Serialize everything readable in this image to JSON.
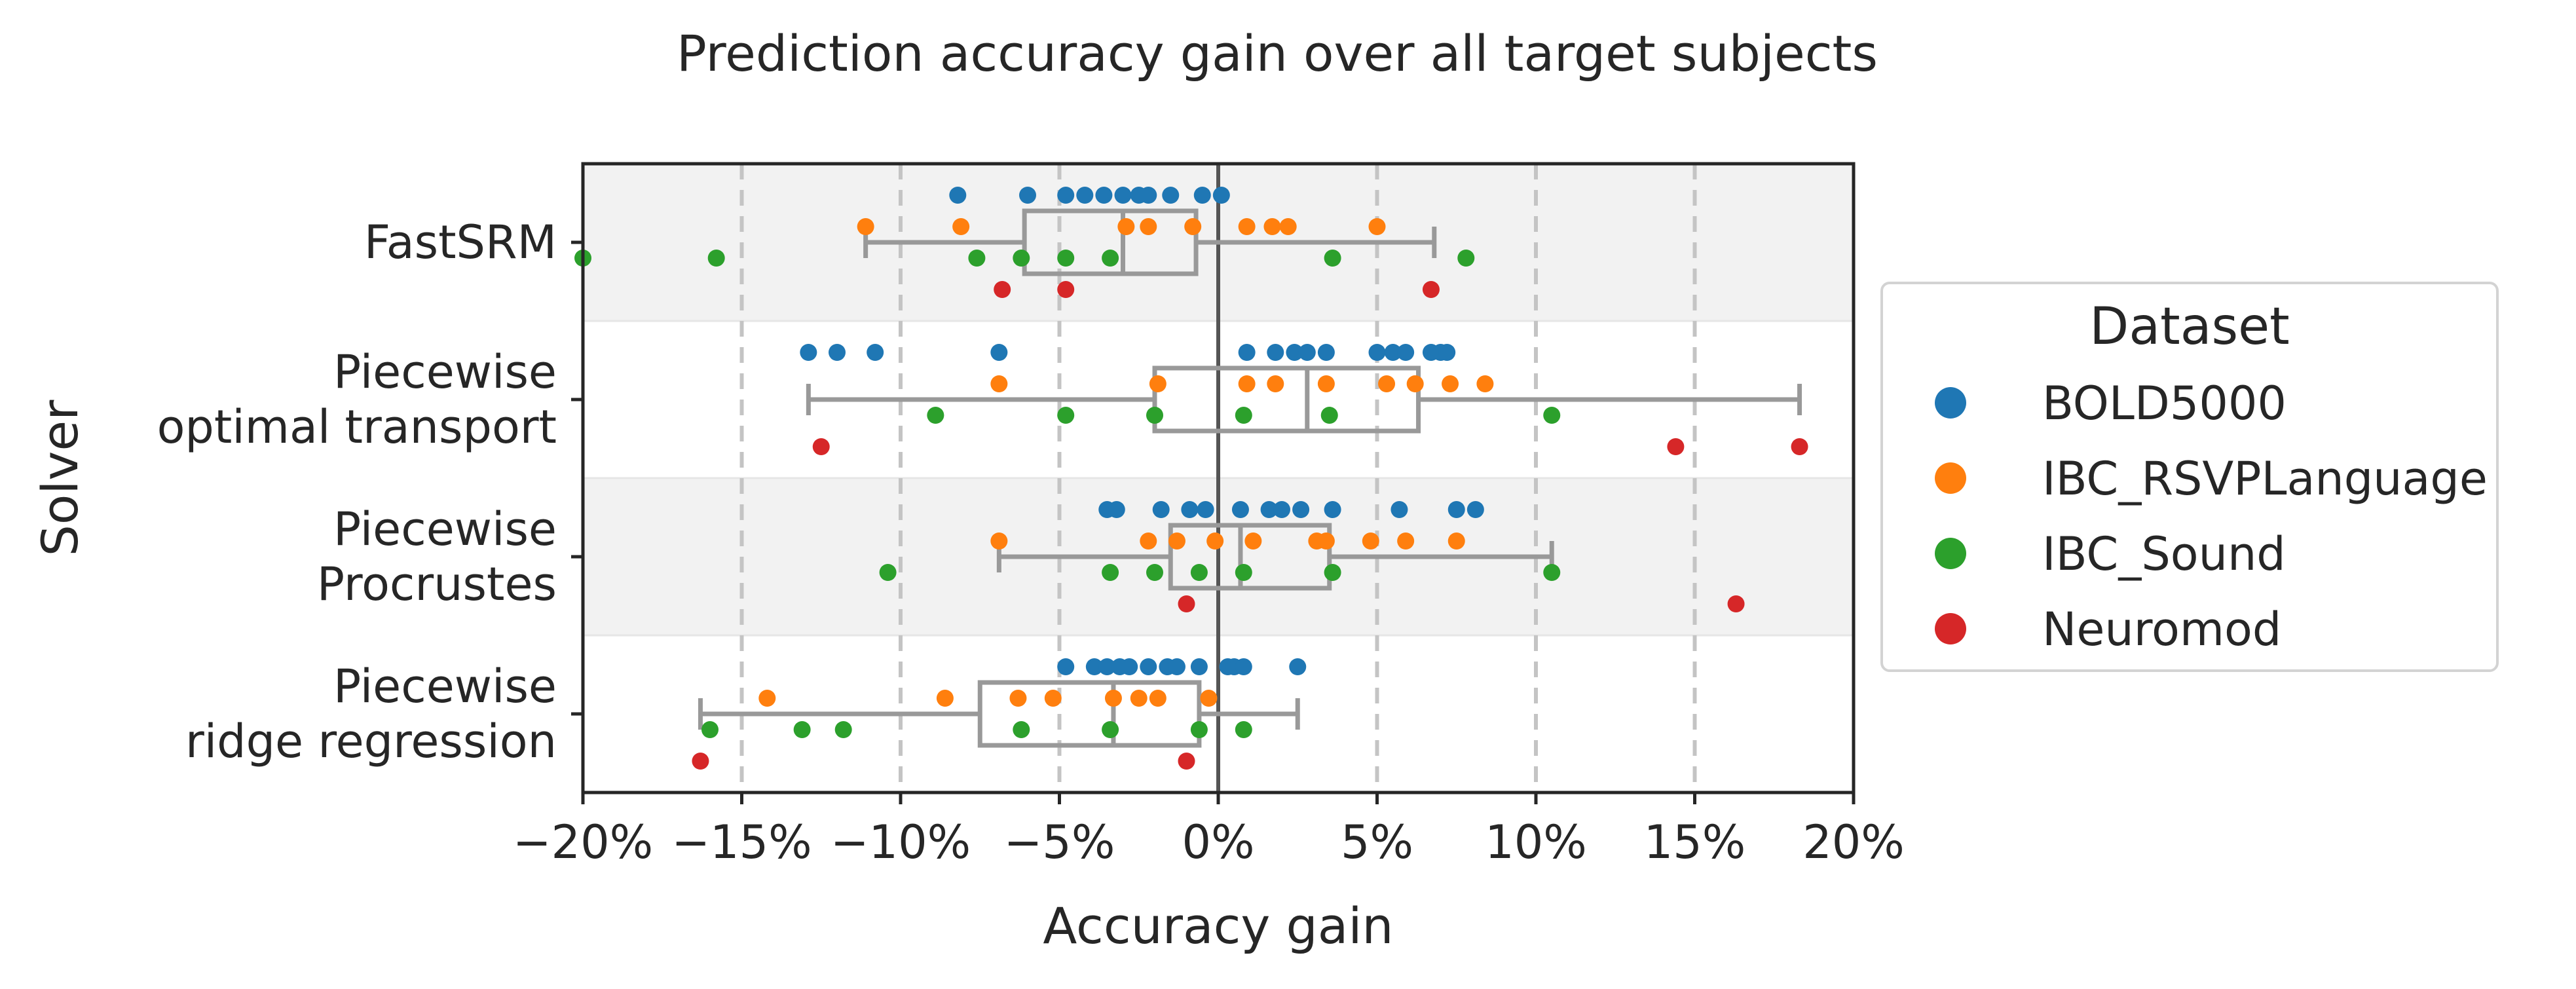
{
  "chart_data": {
    "type": "boxplot-swarm",
    "title": "Prediction accuracy gain over all target subjects",
    "xlabel": "Accuracy gain",
    "ylabel": "Solver",
    "xlim": [
      -20,
      20
    ],
    "x_unit": "%",
    "x_ticks": [
      -20,
      -15,
      -10,
      -5,
      0,
      5,
      10,
      15,
      20
    ],
    "x_tick_labels": [
      "−20%",
      "−15%",
      "−10%",
      "−5%",
      "0%",
      "5%",
      "10%",
      "15%",
      "20%"
    ],
    "grid": true,
    "legend": {
      "title": "Dataset",
      "placement": "right"
    },
    "categories": [
      [
        "FastSRM"
      ],
      [
        "Piecewise",
        "optimal transport"
      ],
      [
        "Piecewise",
        "Procrustes"
      ],
      [
        "Piecewise",
        "ridge regression"
      ]
    ],
    "datasets": [
      {
        "name": "BOLD5000",
        "color": "#1f77b4"
      },
      {
        "name": "IBC_RSVPLanguage",
        "color": "#ff7f0e"
      },
      {
        "name": "IBC_Sound",
        "color": "#2ca02c"
      },
      {
        "name": "Neuromod",
        "color": "#d62728"
      }
    ],
    "boxes": [
      {
        "q1": -6.1,
        "median": -3.0,
        "q3": -0.7,
        "whisker_low": -11.1,
        "whisker_high": 6.8
      },
      {
        "q1": -2.0,
        "median": 2.8,
        "q3": 6.3,
        "whisker_low": -12.9,
        "whisker_high": 18.3
      },
      {
        "q1": -1.5,
        "median": 0.7,
        "q3": 3.5,
        "whisker_low": -6.9,
        "whisker_high": 10.5
      },
      {
        "q1": -7.5,
        "median": -3.3,
        "q3": -0.6,
        "whisker_low": -16.3,
        "whisker_high": 2.5
      }
    ],
    "points": [
      {
        "category": 0,
        "dataset": "BOLD5000",
        "values": [
          -8.2,
          -6.0,
          -4.8,
          -4.2,
          -3.6,
          -3.0,
          -2.5,
          -2.2,
          -1.5,
          -0.5,
          0.1
        ]
      },
      {
        "category": 0,
        "dataset": "IBC_RSVPLanguage",
        "values": [
          -11.1,
          -8.1,
          -2.9,
          -2.2,
          -0.8,
          0.9,
          1.7,
          2.2,
          5.0
        ]
      },
      {
        "category": 0,
        "dataset": "IBC_Sound",
        "values": [
          -20.0,
          -15.8,
          -7.6,
          -6.2,
          -4.8,
          -3.4,
          3.6,
          7.8
        ]
      },
      {
        "category": 0,
        "dataset": "Neuromod",
        "values": [
          -6.8,
          -4.8,
          6.7
        ]
      },
      {
        "category": 1,
        "dataset": "BOLD5000",
        "values": [
          -12.9,
          -12.0,
          -10.8,
          -6.9,
          0.9,
          1.8,
          2.4,
          2.8,
          3.4,
          5.0,
          5.5,
          5.9,
          6.7,
          7.0,
          7.2
        ]
      },
      {
        "category": 1,
        "dataset": "IBC_RSVPLanguage",
        "values": [
          -6.9,
          -1.9,
          0.9,
          1.8,
          3.4,
          5.3,
          6.2,
          7.3,
          8.4
        ]
      },
      {
        "category": 1,
        "dataset": "IBC_Sound",
        "values": [
          -8.9,
          -4.8,
          -2.0,
          0.8,
          3.5,
          10.5
        ]
      },
      {
        "category": 1,
        "dataset": "Neuromod",
        "values": [
          -12.5,
          14.4,
          18.3
        ]
      },
      {
        "category": 2,
        "dataset": "BOLD5000",
        "values": [
          -3.5,
          -3.2,
          -1.8,
          -0.9,
          -0.4,
          0.7,
          1.6,
          2.0,
          2.6,
          3.6,
          5.7,
          7.5,
          8.1
        ]
      },
      {
        "category": 2,
        "dataset": "IBC_RSVPLanguage",
        "values": [
          -6.9,
          -2.2,
          -1.3,
          -0.1,
          1.1,
          3.1,
          3.4,
          4.8,
          5.9,
          7.5
        ]
      },
      {
        "category": 2,
        "dataset": "IBC_Sound",
        "values": [
          -10.4,
          -3.4,
          -2.0,
          -0.6,
          0.8,
          3.6,
          10.5
        ]
      },
      {
        "category": 2,
        "dataset": "Neuromod",
        "values": [
          -1.0,
          16.3
        ]
      },
      {
        "category": 3,
        "dataset": "BOLD5000",
        "values": [
          -4.8,
          -3.9,
          -3.5,
          -3.1,
          -2.8,
          -2.2,
          -1.6,
          -1.3,
          -0.6,
          0.3,
          0.5,
          0.8,
          2.5
        ]
      },
      {
        "category": 3,
        "dataset": "IBC_RSVPLanguage",
        "values": [
          -14.2,
          -8.6,
          -6.3,
          -5.2,
          -3.3,
          -2.5,
          -1.9,
          -0.3
        ]
      },
      {
        "category": 3,
        "dataset": "IBC_Sound",
        "values": [
          -16.0,
          -13.1,
          -11.8,
          -6.2,
          -3.4,
          -0.6,
          0.8
        ]
      },
      {
        "category": 3,
        "dataset": "Neuromod",
        "values": [
          -16.3,
          -1.0
        ]
      }
    ]
  }
}
